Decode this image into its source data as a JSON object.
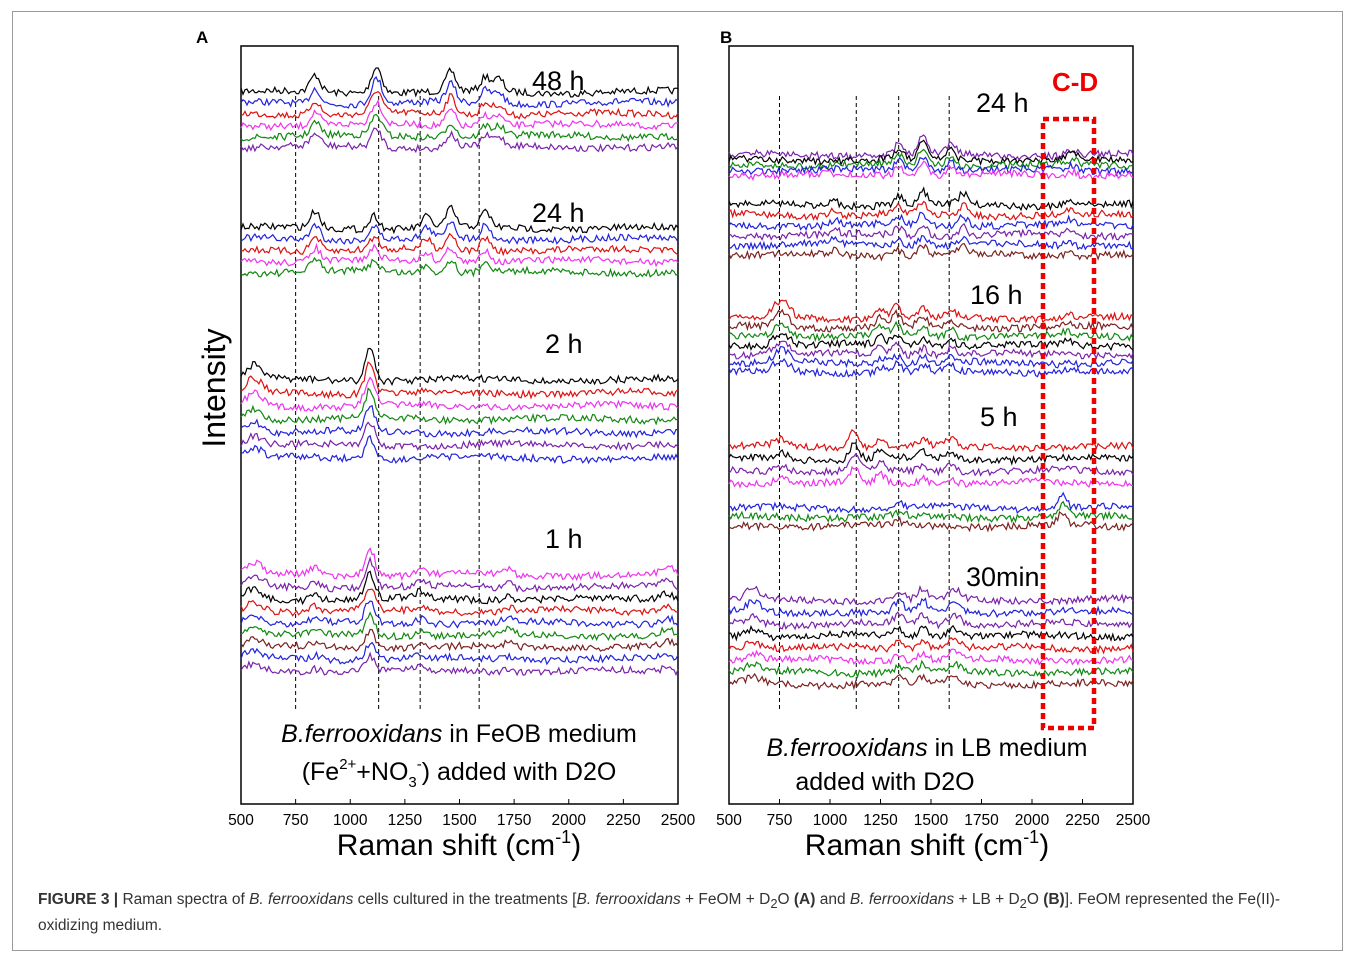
{
  "figure": {
    "caption": {
      "label": "FIGURE 3 |",
      "t1": " Raman spectra of ",
      "sp1": "B. ferrooxidans",
      "t2": " cells cultured in the treatments [",
      "sp2": "B. ferrooxidans",
      "t3": " + FeOM + D",
      "sub1": "2",
      "t4": "O ",
      "bA": "(A)",
      "t5": " and ",
      "sp3": "B. ferrooxidans",
      "t6": " + LB + D",
      "sub2": "2",
      "t7": "O ",
      "bB": "(B)",
      "t8": "]. FeOM represented the Fe(II)-oxidizing medium."
    }
  },
  "chart_data": [
    {
      "type": "line",
      "panel": "A",
      "ylabel": "Intensity",
      "xlabel": "Raman shift (cm-1)",
      "xlabel_parts": {
        "main": "Raman shift (cm",
        "sup": "-1",
        "close": ")"
      },
      "xlim": [
        500,
        2500
      ],
      "xticks": [
        500,
        750,
        1000,
        1250,
        1500,
        1750,
        2000,
        2250,
        2500
      ],
      "reference_lines": [
        750,
        1130,
        1320,
        1590
      ],
      "annotation": {
        "species": "B.ferrooxidans",
        "line1_rest": " in FeOB medium",
        "line2": "(Fe2++NO3-) added with D2O",
        "line2_parts": {
          "a": "(Fe",
          "sup1": "2+",
          "b": "+NO",
          "sub": "3",
          "sup2": "-",
          "c": ") added with D2O"
        }
      },
      "groups": [
        {
          "label": "48 h",
          "colors": [
            "#000000",
            "#2222dd",
            "#dd1111",
            "#ee33ee",
            "#118811",
            "#7a22aa"
          ],
          "peaks": [
            [
              840,
              1.2
            ],
            [
              1110,
              1.0
            ],
            [
              1130,
              1.1
            ],
            [
              1460,
              1.4
            ],
            [
              1620,
              1.0
            ],
            [
              1680,
              0.9
            ]
          ]
        },
        {
          "label": "24 h",
          "colors": [
            "#000000",
            "#2222dd",
            "#dd1111",
            "#ee33ee",
            "#118811"
          ],
          "peaks": [
            [
              840,
              1.2
            ],
            [
              1110,
              1.0
            ],
            [
              1350,
              0.8
            ],
            [
              1460,
              1.3
            ],
            [
              1620,
              1.1
            ]
          ]
        },
        {
          "label": "2 h",
          "colors": [
            "#000000",
            "#dd1111",
            "#ee33ee",
            "#118811",
            "#2222dd",
            "#7a22aa",
            "#2222dd"
          ],
          "peaks": [
            [
              560,
              1.0
            ],
            [
              1090,
              2.4
            ]
          ]
        },
        {
          "label": "1 h",
          "colors": [
            "#ee33ee",
            "#7a22aa",
            "#000000",
            "#dd1111",
            "#2222dd",
            "#118811",
            "#7a2222",
            "#2222dd",
            "#7a22aa"
          ],
          "peaks": [
            [
              560,
              0.8
            ],
            [
              840,
              0.5
            ],
            [
              1090,
              2.0
            ],
            [
              1320,
              0.5
            ],
            [
              1720,
              0.4
            ],
            [
              2450,
              0.6
            ]
          ]
        }
      ]
    },
    {
      "type": "line",
      "panel": "B",
      "xlabel": "Raman shift (cm-1)",
      "xlabel_parts": {
        "main": "Raman shift (cm",
        "sup": "-1",
        "close": ")"
      },
      "xlim": [
        500,
        2500
      ],
      "xticks": [
        500,
        750,
        1000,
        1250,
        1500,
        1750,
        2000,
        2250,
        2500
      ],
      "reference_lines": [
        750,
        1130,
        1340,
        1590
      ],
      "highlight_box": {
        "label": "C-D",
        "x_range": [
          2050,
          2300
        ]
      },
      "annotation": {
        "species": "B.ferrooxidans",
        "line1_rest": " in LB medium",
        "line2": "added with D2O"
      },
      "groups": [
        {
          "label": "24 h",
          "colors": [
            "#7a22aa",
            "#000000",
            "#118811",
            "#2222dd",
            "#ee33ee"
          ],
          "peaks": [
            [
              1340,
              0.8
            ],
            [
              1460,
              1.3
            ],
            [
              1600,
              0.8
            ],
            [
              2200,
              0.4
            ]
          ]
        },
        {
          "label": "",
          "colors": [
            "#000000",
            "#dd1111",
            "#2222dd",
            "#7a22aa",
            "#2222dd",
            "#7a2222"
          ],
          "peaks": [
            [
              1020,
              0.4
            ],
            [
              1340,
              0.6
            ],
            [
              1460,
              0.9
            ],
            [
              1660,
              0.8
            ],
            [
              2180,
              0.4
            ]
          ]
        },
        {
          "label": "16 h",
          "colors": [
            "#dd1111",
            "#7a2222",
            "#118811",
            "#000000",
            "#7a22aa",
            "#2222dd",
            "#2222dd"
          ],
          "peaks": [
            [
              760,
              1.2
            ],
            [
              1250,
              0.7
            ],
            [
              1330,
              0.9
            ],
            [
              1460,
              0.7
            ],
            [
              1600,
              0.6
            ],
            [
              2180,
              0.3
            ]
          ]
        },
        {
          "label": "5 h",
          "colors": [
            "#dd1111",
            "#000000",
            "#7a22aa",
            "#ee33ee"
          ],
          "peaks": [
            [
              760,
              0.5
            ],
            [
              1120,
              1.3
            ],
            [
              1250,
              0.7
            ],
            [
              1460,
              0.5
            ],
            [
              1600,
              0.6
            ]
          ]
        },
        {
          "label": "",
          "colors": [
            "#2222dd",
            "#118811",
            "#7a2222"
          ],
          "peaks": [
            [
              1340,
              0.3
            ],
            [
              2150,
              0.9
            ]
          ]
        },
        {
          "label": "30min",
          "colors": [
            "#7a22aa",
            "#2222dd",
            "#7a22aa",
            "#000000",
            "#dd1111",
            "#ee33ee",
            "#118811",
            "#7a2222"
          ],
          "peaks": [
            [
              620,
              0.7
            ],
            [
              1340,
              0.7
            ],
            [
              1460,
              0.8
            ],
            [
              1600,
              0.6
            ],
            [
              1640,
              0.5
            ]
          ]
        }
      ]
    }
  ]
}
